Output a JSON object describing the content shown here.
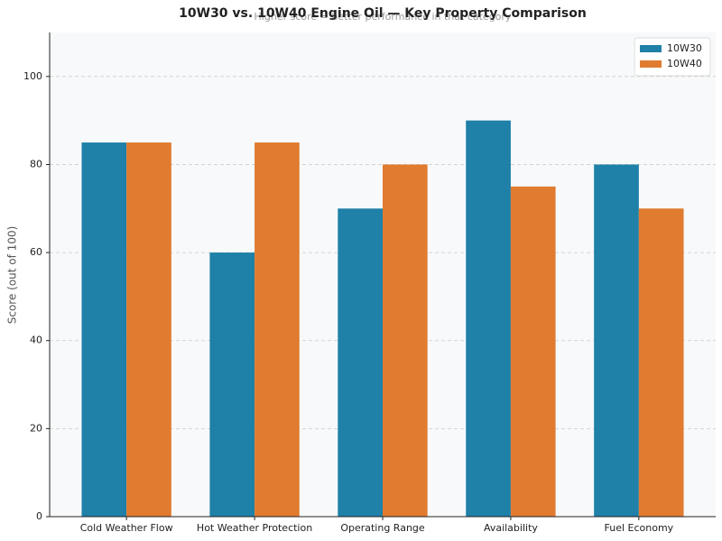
{
  "chart_data": {
    "type": "bar",
    "title": "10W30 vs. 10W40 Engine Oil — Key Property Comparison",
    "subtitle": "Higher score = better performance in that category",
    "y_label": "Score (out of 100)",
    "categories": [
      "Cold Weather Flow",
      "Hot Weather Protection",
      "Operating Range",
      "Availability",
      "Fuel Economy"
    ],
    "series": [
      {
        "name": "10W30",
        "color": "#1f80a8",
        "values": [
          85,
          60,
          70,
          90,
          80
        ]
      },
      {
        "name": "10W40",
        "color": "#e07b30",
        "values": [
          85,
          85,
          80,
          75,
          70
        ]
      }
    ],
    "ylim": [
      0,
      110
    ],
    "yticks": [
      0,
      20,
      40,
      60,
      80,
      100
    ],
    "grid": true,
    "legend": "upper right"
  }
}
